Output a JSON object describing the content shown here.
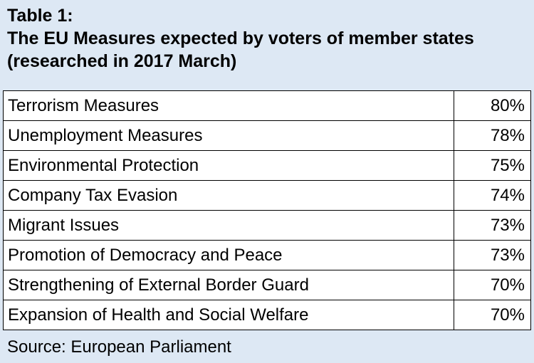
{
  "title": {
    "line1": "Table 1:",
    "line2": "The EU Measures expected by voters of member states",
    "line3": "(researched in 2017 March)"
  },
  "rows": [
    {
      "label": "Terrorism Measures",
      "value": "80%"
    },
    {
      "label": "Unemployment Measures",
      "value": "78%"
    },
    {
      "label": "Environmental Protection",
      "value": "75%"
    },
    {
      "label": "Company Tax Evasion",
      "value": "74%"
    },
    {
      "label": "Migrant Issues",
      "value": "73%"
    },
    {
      "label": "Promotion of Democracy and Peace",
      "value": "73%"
    },
    {
      "label": "Strengthening of External Border Guard",
      "value": "70%"
    },
    {
      "label": "Expansion of Health and Social Welfare",
      "value": "70%"
    }
  ],
  "source": "Source: European Parliament",
  "colors": {
    "background": "#dde8f4",
    "table_background": "#ffffff",
    "border": "#000000"
  }
}
